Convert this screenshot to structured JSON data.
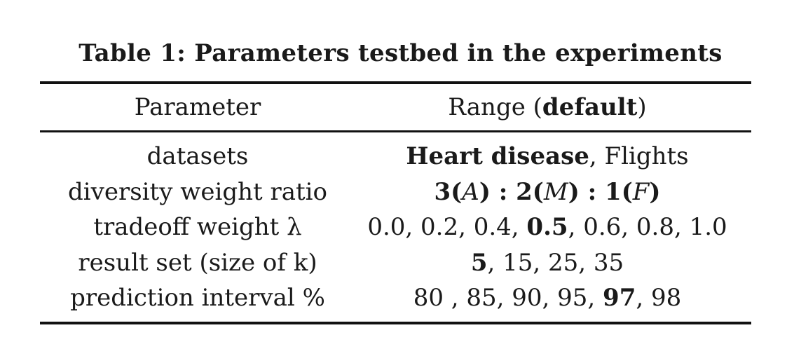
{
  "caption": "Table 1: Parameters testbed in the experiments",
  "header": {
    "parameter": "Parameter",
    "range_prefix": "Range (",
    "range_default": "default",
    "range_suffix": ")"
  },
  "rows": [
    {
      "parameter": "datasets",
      "parts": [
        {
          "text": "Heart disease",
          "bold": true
        },
        {
          "text": ", Flights",
          "bold": false
        }
      ]
    },
    {
      "parameter": "diversity weight ratio",
      "parts": [
        {
          "text": "3(",
          "bold": true
        },
        {
          "text": "A",
          "bold": false,
          "math": true
        },
        {
          "text": ") : 2(",
          "bold": true
        },
        {
          "text": "M",
          "bold": false,
          "math": true
        },
        {
          "text": ") : 1(",
          "bold": true
        },
        {
          "text": "F",
          "bold": false,
          "math": true
        },
        {
          "text": ")",
          "bold": true
        }
      ]
    },
    {
      "parameter": "tradeoff weight λ",
      "parts": [
        {
          "text": "0.0, 0.2, 0.4, ",
          "bold": false
        },
        {
          "text": "0.5",
          "bold": true
        },
        {
          "text": ", 0.6, 0.8, 1.0",
          "bold": false
        }
      ]
    },
    {
      "parameter": "result set (size of k)",
      "parts": [
        {
          "text": "5",
          "bold": true
        },
        {
          "text": ", 15, 25, 35",
          "bold": false
        }
      ]
    },
    {
      "parameter": "prediction interval %",
      "parts": [
        {
          "text": "80 , 85, 90, 95, ",
          "bold": false
        },
        {
          "text": "97",
          "bold": true
        },
        {
          "text": ", 98",
          "bold": false
        }
      ]
    }
  ]
}
